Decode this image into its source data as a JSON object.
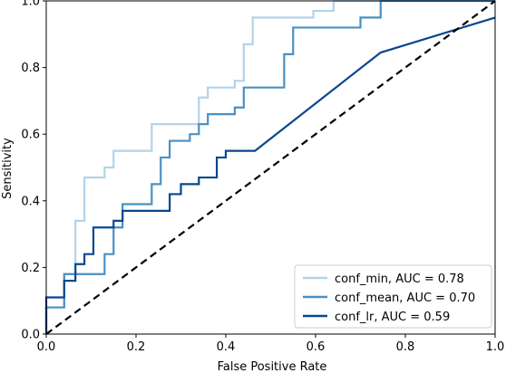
{
  "chart_data": {
    "type": "line",
    "xlabel": "False Positive Rate",
    "ylabel": "Sensitivity",
    "xlim": [
      0,
      1
    ],
    "ylim": [
      0,
      1
    ],
    "xticks": [
      "0.0",
      "0.2",
      "0.4",
      "0.6",
      "0.8",
      "1.0"
    ],
    "yticks": [
      "0.0",
      "0.2",
      "0.4",
      "0.6",
      "0.8",
      "1.0"
    ],
    "grid": false,
    "legend_position": "lower-right",
    "series": [
      {
        "name": "conf_min, AUC = 0.78",
        "color": "#b3d3e8",
        "points": [
          [
            0,
            0
          ],
          [
            0,
            0.08
          ],
          [
            0.04,
            0.08
          ],
          [
            0.04,
            0.18
          ],
          [
            0.065,
            0.18
          ],
          [
            0.065,
            0.34
          ],
          [
            0.085,
            0.34
          ],
          [
            0.085,
            0.47
          ],
          [
            0.13,
            0.47
          ],
          [
            0.13,
            0.5
          ],
          [
            0.15,
            0.5
          ],
          [
            0.15,
            0.55
          ],
          [
            0.235,
            0.55
          ],
          [
            0.235,
            0.63
          ],
          [
            0.34,
            0.63
          ],
          [
            0.34,
            0.71
          ],
          [
            0.36,
            0.71
          ],
          [
            0.36,
            0.74
          ],
          [
            0.42,
            0.74
          ],
          [
            0.42,
            0.76
          ],
          [
            0.44,
            0.76
          ],
          [
            0.44,
            0.87
          ],
          [
            0.46,
            0.87
          ],
          [
            0.46,
            0.95
          ],
          [
            0.595,
            0.95
          ],
          [
            0.595,
            0.97
          ],
          [
            0.64,
            0.97
          ],
          [
            0.64,
            1.0
          ],
          [
            1,
            1
          ]
        ]
      },
      {
        "name": "conf_mean, AUC = 0.70",
        "color": "#4a90c2",
        "points": [
          [
            0,
            0
          ],
          [
            0,
            0.08
          ],
          [
            0.04,
            0.08
          ],
          [
            0.04,
            0.18
          ],
          [
            0.13,
            0.18
          ],
          [
            0.13,
            0.24
          ],
          [
            0.15,
            0.24
          ],
          [
            0.15,
            0.32
          ],
          [
            0.17,
            0.32
          ],
          [
            0.17,
            0.39
          ],
          [
            0.235,
            0.39
          ],
          [
            0.235,
            0.45
          ],
          [
            0.255,
            0.45
          ],
          [
            0.255,
            0.53
          ],
          [
            0.275,
            0.53
          ],
          [
            0.275,
            0.58
          ],
          [
            0.32,
            0.58
          ],
          [
            0.32,
            0.6
          ],
          [
            0.34,
            0.6
          ],
          [
            0.34,
            0.63
          ],
          [
            0.36,
            0.63
          ],
          [
            0.36,
            0.66
          ],
          [
            0.42,
            0.66
          ],
          [
            0.42,
            0.68
          ],
          [
            0.44,
            0.68
          ],
          [
            0.44,
            0.74
          ],
          [
            0.53,
            0.74
          ],
          [
            0.53,
            0.84
          ],
          [
            0.55,
            0.84
          ],
          [
            0.55,
            0.92
          ],
          [
            0.7,
            0.92
          ],
          [
            0.7,
            0.95
          ],
          [
            0.745,
            0.95
          ],
          [
            0.745,
            1.0
          ],
          [
            1,
            1
          ]
        ]
      },
      {
        "name": "conf_lr, AUC = 0.59",
        "color": "#08478d",
        "points": [
          [
            0,
            0
          ],
          [
            0,
            0.11
          ],
          [
            0.04,
            0.11
          ],
          [
            0.04,
            0.16
          ],
          [
            0.065,
            0.16
          ],
          [
            0.065,
            0.21
          ],
          [
            0.085,
            0.21
          ],
          [
            0.085,
            0.24
          ],
          [
            0.105,
            0.24
          ],
          [
            0.105,
            0.32
          ],
          [
            0.15,
            0.32
          ],
          [
            0.15,
            0.34
          ],
          [
            0.17,
            0.34
          ],
          [
            0.17,
            0.37
          ],
          [
            0.235,
            0.37
          ],
          [
            0.275,
            0.37
          ],
          [
            0.275,
            0.42
          ],
          [
            0.3,
            0.42
          ],
          [
            0.3,
            0.45
          ],
          [
            0.32,
            0.45
          ],
          [
            0.32,
            0.45
          ],
          [
            0.34,
            0.45
          ],
          [
            0.34,
            0.47
          ],
          [
            0.36,
            0.47
          ],
          [
            0.36,
            0.47
          ],
          [
            0.38,
            0.47
          ],
          [
            0.38,
            0.53
          ],
          [
            0.4,
            0.53
          ],
          [
            0.4,
            0.55
          ],
          [
            0.465,
            0.55
          ],
          [
            0.745,
            0.845
          ],
          [
            1,
            0.95
          ]
        ]
      }
    ],
    "reference_line": {
      "points": [
        [
          0,
          0
        ],
        [
          1,
          1
        ]
      ],
      "color": "#000000",
      "style": "dashed"
    }
  }
}
